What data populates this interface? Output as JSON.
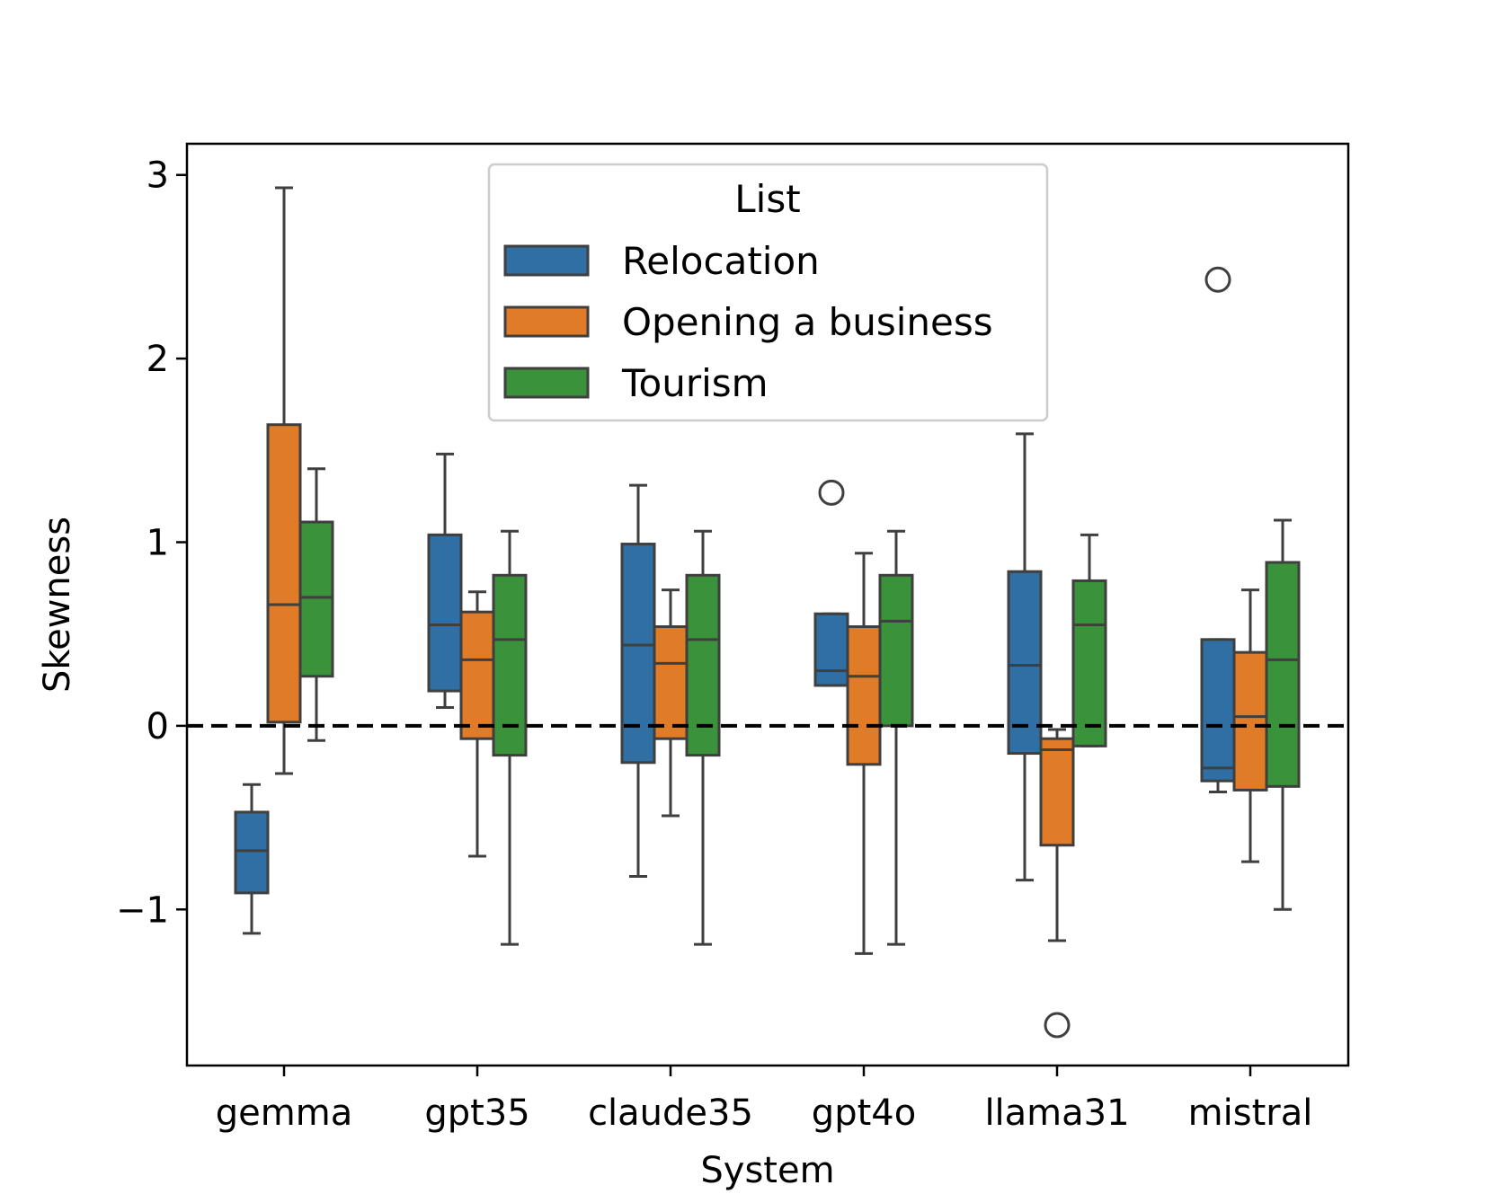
{
  "chart_data": {
    "type": "boxplot",
    "title": "",
    "xlabel": "System",
    "ylabel": "Skewness",
    "ylim": [
      -1.85,
      3.17
    ],
    "yticks": [
      {
        "value": -1,
        "label": "−1"
      },
      {
        "value": 0,
        "label": "0"
      },
      {
        "value": 1,
        "label": "1"
      },
      {
        "value": 2,
        "label": "2"
      },
      {
        "value": 3,
        "label": "3"
      }
    ],
    "categories": [
      "gemma",
      "gpt35",
      "claude35",
      "gpt4o",
      "llama31",
      "mistral"
    ],
    "reference_line": {
      "y": 0,
      "style": "dashed",
      "color": "#000000"
    },
    "legend": {
      "title": "List",
      "position": "top-center"
    },
    "series": [
      {
        "name": "Relocation",
        "color": "#2f6fa3",
        "boxes": [
          {
            "whislo": -1.13,
            "q1": -0.91,
            "med": -0.68,
            "q3": -0.47,
            "whishi": -0.32,
            "fliers": []
          },
          {
            "whislo": 0.1,
            "q1": 0.19,
            "med": 0.55,
            "q3": 1.04,
            "whishi": 1.48,
            "fliers": []
          },
          {
            "whislo": -0.82,
            "q1": -0.2,
            "med": 0.44,
            "q3": 0.99,
            "whishi": 1.31,
            "fliers": []
          },
          {
            "whislo": 0.22,
            "q1": 0.22,
            "med": 0.3,
            "q3": 0.61,
            "whishi": 0.61,
            "fliers": [
              1.27
            ]
          },
          {
            "whislo": -0.84,
            "q1": -0.15,
            "med": 0.33,
            "q3": 0.84,
            "whishi": 1.59,
            "fliers": []
          },
          {
            "whislo": -0.36,
            "q1": -0.3,
            "med": -0.23,
            "q3": 0.47,
            "whishi": 0.47,
            "fliers": [
              2.43
            ]
          }
        ]
      },
      {
        "name": "Opening a business",
        "color": "#e07b27",
        "boxes": [
          {
            "whislo": -0.26,
            "q1": 0.02,
            "med": 0.66,
            "q3": 1.64,
            "whishi": 2.93,
            "fliers": []
          },
          {
            "whislo": -0.71,
            "q1": -0.07,
            "med": 0.36,
            "q3": 0.62,
            "whishi": 0.73,
            "fliers": []
          },
          {
            "whislo": -0.49,
            "q1": -0.07,
            "med": 0.34,
            "q3": 0.54,
            "whishi": 0.74,
            "fliers": []
          },
          {
            "whislo": -1.24,
            "q1": -0.21,
            "med": 0.27,
            "q3": 0.54,
            "whishi": 0.94,
            "fliers": []
          },
          {
            "whislo": -1.17,
            "q1": -0.65,
            "med": -0.13,
            "q3": -0.07,
            "whishi": -0.02,
            "fliers": [
              -1.63
            ]
          },
          {
            "whislo": -0.74,
            "q1": -0.35,
            "med": 0.05,
            "q3": 0.4,
            "whishi": 0.74,
            "fliers": []
          }
        ]
      },
      {
        "name": "Tourism",
        "color": "#3a923a",
        "boxes": [
          {
            "whislo": -0.08,
            "q1": 0.27,
            "med": 0.7,
            "q3": 1.11,
            "whishi": 1.4,
            "fliers": []
          },
          {
            "whislo": -1.19,
            "q1": -0.16,
            "med": 0.47,
            "q3": 0.82,
            "whishi": 1.06,
            "fliers": []
          },
          {
            "whislo": -1.19,
            "q1": -0.16,
            "med": 0.47,
            "q3": 0.82,
            "whishi": 1.06,
            "fliers": []
          },
          {
            "whislo": -1.19,
            "q1": 0.0,
            "med": 0.57,
            "q3": 0.82,
            "whishi": 1.06,
            "fliers": []
          },
          {
            "whislo": -0.11,
            "q1": -0.11,
            "med": 0.55,
            "q3": 0.79,
            "whishi": 1.04,
            "fliers": []
          },
          {
            "whislo": -1.0,
            "q1": -0.33,
            "med": 0.36,
            "q3": 0.89,
            "whishi": 1.12,
            "fliers": []
          }
        ]
      }
    ]
  }
}
